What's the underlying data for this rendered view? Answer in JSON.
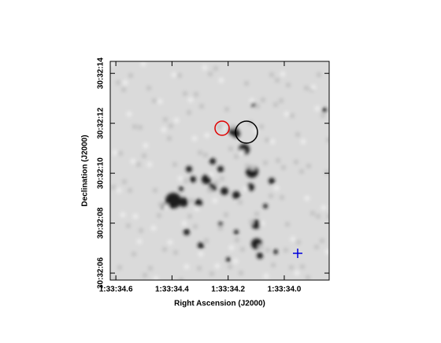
{
  "chart_data": {
    "type": "image",
    "x_label": "Right Ascension (J2000)",
    "y_label": "Declination (J2000)",
    "xlim": [
      34.62,
      33.84
    ],
    "xticks": [
      {
        "value": 34.6,
        "label": "1:33:34.6"
      },
      {
        "value": 34.4,
        "label": "1:33:34.4"
      },
      {
        "value": 34.2,
        "label": "1:33:34.2"
      },
      {
        "value": 34.0,
        "label": "1:33:34.0"
      }
    ],
    "ylim": [
      5.72,
      14.48
    ],
    "yticks": [
      {
        "value": 6,
        "label": "30:32:06"
      },
      {
        "value": 8,
        "label": "30:32:08"
      },
      {
        "value": 10,
        "label": "30:32:10"
      },
      {
        "value": 12,
        "label": "30:32:12"
      },
      {
        "value": 14,
        "label": "30:32:14"
      }
    ]
  }
}
